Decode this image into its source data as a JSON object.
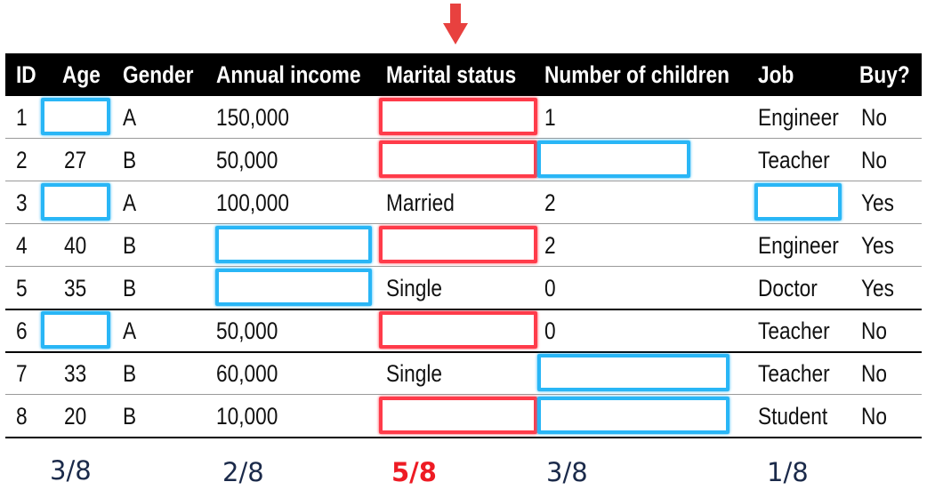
{
  "arrow_color": "#e8413f",
  "columns": [
    "ID",
    "Age",
    "Gender",
    "Annual income",
    "Marital status",
    "Number of children",
    "Job",
    "Buy?"
  ],
  "rows": [
    {
      "id": "1",
      "age": "",
      "gender": "A",
      "income": "150,000",
      "marital": "",
      "children": "1",
      "job": "Engineer",
      "buy": "No"
    },
    {
      "id": "2",
      "age": "27",
      "gender": "B",
      "income": "50,000",
      "marital": "",
      "children": "",
      "job": "Teacher",
      "buy": "No"
    },
    {
      "id": "3",
      "age": "",
      "gender": "A",
      "income": "100,000",
      "marital": "Married",
      "children": "2",
      "job": "",
      "buy": "Yes"
    },
    {
      "id": "4",
      "age": "40",
      "gender": "B",
      "income": "",
      "marital": "",
      "children": "2",
      "job": "Engineer",
      "buy": "Yes"
    },
    {
      "id": "5",
      "age": "35",
      "gender": "B",
      "income": "",
      "marital": "Single",
      "children": "0",
      "job": "Doctor",
      "buy": "Yes"
    },
    {
      "id": "6",
      "age": "",
      "gender": "A",
      "income": "50,000",
      "marital": "",
      "children": "0",
      "job": "Teacher",
      "buy": "No"
    },
    {
      "id": "7",
      "age": "33",
      "gender": "B",
      "income": "60,000",
      "marital": "Single",
      "children": "",
      "job": "Teacher",
      "buy": "No"
    },
    {
      "id": "8",
      "age": "20",
      "gender": "B",
      "income": "10,000",
      "marital": "",
      "children": "",
      "job": "Student",
      "buy": "No"
    }
  ],
  "missing_ratios": {
    "age": "3/8",
    "income": "2/8",
    "marital": "5/8",
    "children": "3/8",
    "job": "1/8"
  },
  "colors": {
    "missing_box": "#29b6f6",
    "highlight_box": "#ff3b4a",
    "highlight_ratio": "#ee1b24"
  }
}
